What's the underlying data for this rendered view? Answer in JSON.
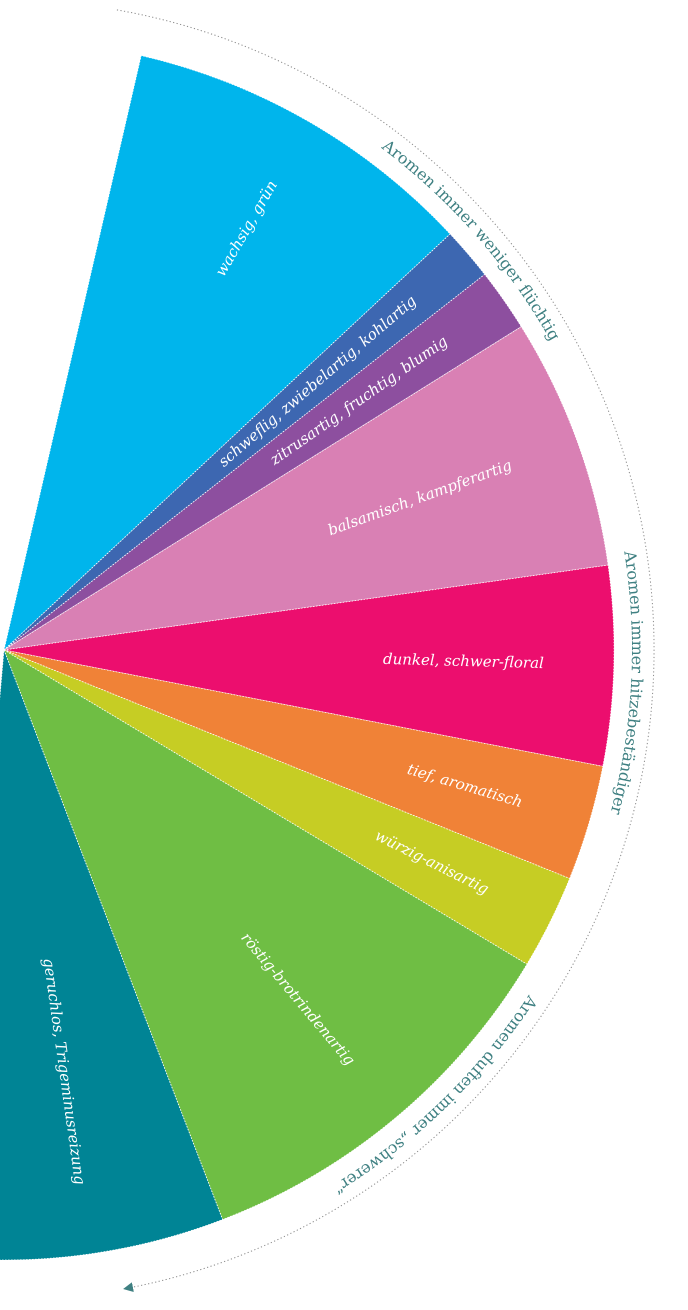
{
  "wheel": {
    "segments": [
      {
        "label": "wachsig, grün",
        "color": "#00b5ec",
        "start": -77,
        "end": -43
      },
      {
        "label": "schweflig, zwiebelartig, kohlartig",
        "color": "#3d67b1",
        "start": -43,
        "end": -38
      },
      {
        "label": "zitrusartig, fruchtig, blumig",
        "color": "#8d4f9f",
        "start": -38,
        "end": -32
      },
      {
        "label": "balsamisch, kampferartig",
        "color": "#d980b4",
        "start": -32,
        "end": -8
      },
      {
        "label": "dunkel, schwer-floral",
        "color": "#ec0e6e",
        "start": -8,
        "end": 11
      },
      {
        "label": "tief, aromatisch",
        "color": "#f08237",
        "start": 11,
        "end": 22
      },
      {
        "label": "würzig-anisartig",
        "color": "#c6cd24",
        "start": 22,
        "end": 31
      },
      {
        "label": "röstig-brotrindenartig",
        "color": "#6fbe44",
        "start": 31,
        "end": 69
      },
      {
        "label": "geruchlos, Trigeminusreizung",
        "color": "#008495",
        "start": 69,
        "end": 95
      }
    ],
    "arc_labels": [
      "Aromen immer weniger flüchtig",
      "Aromen immer hitzebeständiger",
      "Aromen duften immer „schwerer“"
    ],
    "arrow_color": "#3f8082"
  }
}
